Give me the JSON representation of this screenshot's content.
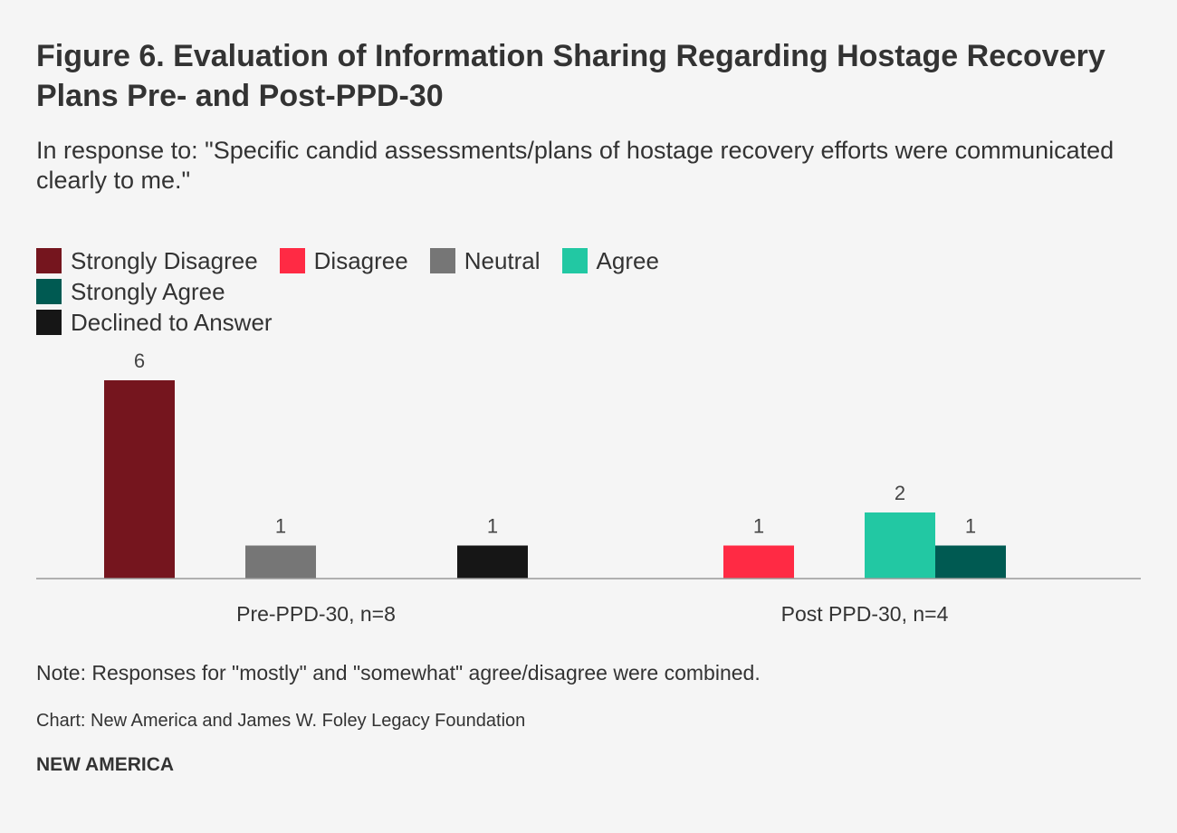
{
  "title": "Figure 6. Evaluation of Information Sharing Regarding Hostage Recovery Plans Pre- and Post-PPD-30",
  "subtitle": "In response to: \"Specific candid assessments/plans of hostage recovery efforts were communicated clearly to me.\"",
  "note": "Note: Responses for \"mostly\" and \"somewhat\" agree/disagree were combined.",
  "source": "Chart: New America and James W. Foley Legacy Foundation",
  "brand": "NEW AMERICA",
  "chart_data": {
    "type": "bar",
    "categories": [
      "Pre-PPD-30, n=8",
      "Post PPD-30, n=4"
    ],
    "series": [
      {
        "name": "Strongly Disagree",
        "color": "#75151e",
        "values": [
          6,
          0
        ]
      },
      {
        "name": "Disagree",
        "color": "#ff2a44",
        "values": [
          0,
          1
        ]
      },
      {
        "name": "Neutral",
        "color": "#767676",
        "values": [
          1,
          0
        ]
      },
      {
        "name": "Agree",
        "color": "#22c8a3",
        "values": [
          0,
          2
        ]
      },
      {
        "name": "Strongly Agree",
        "color": "#005a52",
        "values": [
          0,
          1
        ]
      },
      {
        "name": "Declined to Answer",
        "color": "#161616",
        "values": [
          1,
          0
        ]
      }
    ],
    "ylim": [
      0,
      6
    ],
    "legend": "top",
    "grid": false,
    "xlabel": "",
    "ylabel": ""
  }
}
